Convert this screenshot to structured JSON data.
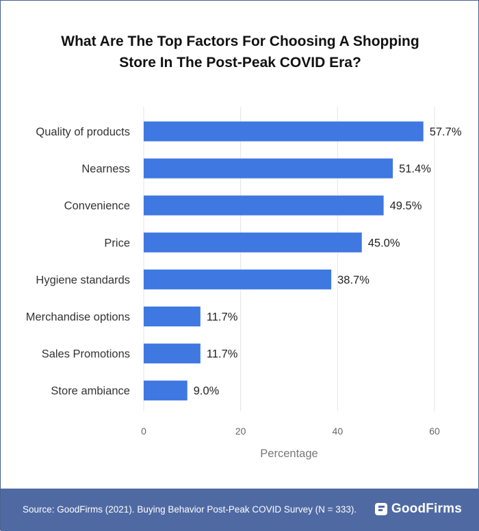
{
  "chart_data": {
    "type": "bar",
    "orientation": "horizontal",
    "title_lines": [
      "What Are The Top Factors For Choosing A Shopping",
      "Store In The Post-Peak COVID Era?"
    ],
    "categories": [
      "Quality of products",
      "Nearness",
      "Convenience",
      "Price",
      "Hygiene standards",
      "Merchandise options",
      "Sales Promotions",
      "Store ambiance"
    ],
    "values": [
      57.7,
      51.4,
      49.5,
      45.0,
      38.7,
      11.7,
      11.7,
      9.0
    ],
    "value_labels": [
      "57.7%",
      "51.4%",
      "49.5%",
      "45.0%",
      "38.7%",
      "11.7%",
      "11.7%",
      "9.0%"
    ],
    "xlabel": "Percentage",
    "xlim": [
      0,
      60
    ],
    "xticks": [
      0,
      20,
      40,
      60
    ],
    "grid": true,
    "bar_color": "#3f78e0"
  },
  "footer": {
    "source": "Source: GoodFirms (2021). Buying Behavior Post-Peak COVID Survey (N = 333).",
    "brand": "GoodFirms",
    "background_color": "#4f6aa3"
  }
}
